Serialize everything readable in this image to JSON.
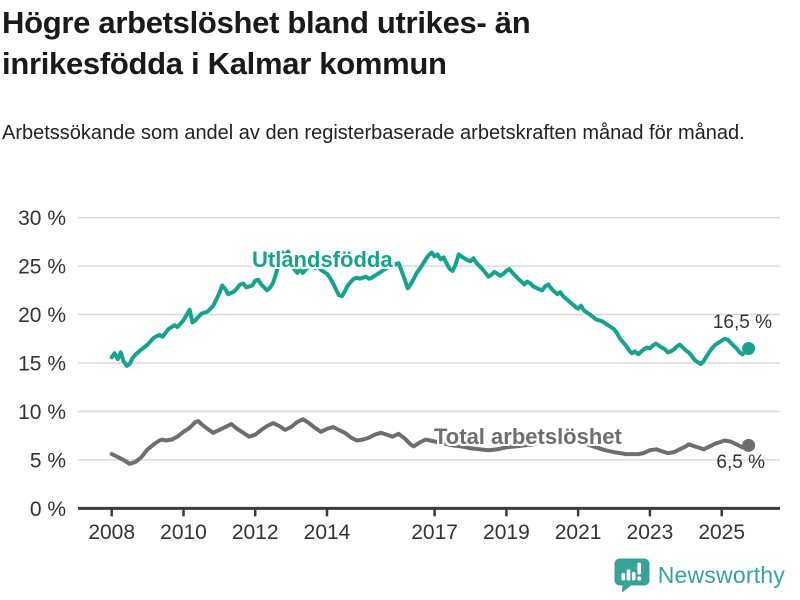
{
  "header": {
    "title": "Högre arbetslöshet bland utrikes- än inrikesfödda i Kalmar kommun",
    "subtitle": "Arbetssökande som andel av den registerbaserade arbetskraften månad för månad."
  },
  "chart_data": {
    "type": "line",
    "title": "Högre arbetslöshet bland utrikes- än inrikesfödda i Kalmar kommun",
    "xlabel": "",
    "ylabel": "",
    "ylim": [
      0,
      30
    ],
    "xlim": [
      2007.05,
      2026.6
    ],
    "grid": true,
    "legend_position": "inline-labels-on-lines",
    "colors": {
      "axis": "#3c3c3c",
      "gridline": "#d9d9d9",
      "tick_text": "#333333"
    },
    "y_ticks": [
      {
        "value": 0,
        "label": "0 %"
      },
      {
        "value": 5,
        "label": "5 %"
      },
      {
        "value": 10,
        "label": "10 %"
      },
      {
        "value": 15,
        "label": "15 %"
      },
      {
        "value": 20,
        "label": "20 %"
      },
      {
        "value": 25,
        "label": "25 %"
      },
      {
        "value": 30,
        "label": "30 %"
      }
    ],
    "x_ticks": [
      {
        "value": 2008,
        "label": "2008"
      },
      {
        "value": 2010,
        "label": "2010"
      },
      {
        "value": 2012,
        "label": "2012"
      },
      {
        "value": 2014,
        "label": "2014"
      },
      {
        "value": 2017,
        "label": "2017"
      },
      {
        "value": 2019,
        "label": "2019"
      },
      {
        "value": 2021,
        "label": "2021"
      },
      {
        "value": 2023,
        "label": "2023"
      },
      {
        "value": 2025,
        "label": "2025"
      }
    ],
    "series": [
      {
        "name": "Utlandsfödda",
        "color": "#17a28f",
        "end_label": "16,5 %",
        "final_value": 16.5,
        "x": [
          2008.0,
          2008.08,
          2008.17,
          2008.25,
          2008.33,
          2008.42,
          2008.5,
          2008.58,
          2008.67,
          2008.83,
          2009.0,
          2009.17,
          2009.33,
          2009.42,
          2009.58,
          2009.75,
          2009.83,
          2010.0,
          2010.08,
          2010.17,
          2010.25,
          2010.33,
          2010.5,
          2010.67,
          2010.83,
          2011.0,
          2011.08,
          2011.17,
          2011.25,
          2011.42,
          2011.58,
          2011.67,
          2011.75,
          2011.92,
          2012.0,
          2012.08,
          2012.17,
          2012.33,
          2012.42,
          2012.5,
          2012.58,
          2012.67,
          2012.75,
          2012.83,
          2012.92,
          2013.0,
          2013.08,
          2013.17,
          2013.25,
          2013.33,
          2013.42,
          2013.5,
          2013.58,
          2013.67,
          2013.75,
          2013.83,
          2013.92,
          2014.0,
          2014.08,
          2014.17,
          2014.25,
          2014.33,
          2014.42,
          2014.5,
          2014.58,
          2014.67,
          2014.75,
          2014.83,
          2014.92,
          2015.0,
          2015.08,
          2015.17,
          2015.25,
          2015.33,
          2015.42,
          2015.5,
          2015.58,
          2015.67,
          2015.75,
          2015.83,
          2015.92,
          2016.0,
          2016.08,
          2016.17,
          2016.25,
          2016.33,
          2016.42,
          2016.5,
          2016.58,
          2016.67,
          2016.75,
          2016.83,
          2016.92,
          2017.0,
          2017.08,
          2017.17,
          2017.25,
          2017.33,
          2017.42,
          2017.5,
          2017.58,
          2017.67,
          2017.75,
          2017.83,
          2017.92,
          2018.0,
          2018.08,
          2018.17,
          2018.25,
          2018.33,
          2018.42,
          2018.5,
          2018.58,
          2018.67,
          2018.75,
          2018.83,
          2018.92,
          2019.0,
          2019.08,
          2019.17,
          2019.25,
          2019.33,
          2019.42,
          2019.5,
          2019.58,
          2019.67,
          2019.75,
          2019.92,
          2020.0,
          2020.08,
          2020.17,
          2020.25,
          2020.33,
          2020.42,
          2020.5,
          2020.58,
          2020.67,
          2020.83,
          2020.92,
          2021.0,
          2021.08,
          2021.17,
          2021.33,
          2021.5,
          2021.67,
          2021.83,
          2022.0,
          2022.08,
          2022.17,
          2022.33,
          2022.42,
          2022.5,
          2022.58,
          2022.67,
          2022.83,
          2022.92,
          2023.0,
          2023.08,
          2023.17,
          2023.25,
          2023.33,
          2023.42,
          2023.5,
          2023.58,
          2023.67,
          2023.75,
          2023.83,
          2023.92,
          2024.0,
          2024.08,
          2024.17,
          2024.25,
          2024.33,
          2024.42,
          2024.5,
          2024.58,
          2024.67,
          2024.75,
          2024.83,
          2024.92,
          2025.0,
          2025.08,
          2025.17,
          2025.25,
          2025.33,
          2025.42,
          2025.5,
          2025.58,
          2025.67,
          2025.75
        ],
        "values": [
          15.6,
          16.0,
          15.4,
          16.1,
          15.2,
          14.7,
          14.9,
          15.5,
          15.9,
          16.4,
          16.9,
          17.6,
          17.9,
          17.7,
          18.5,
          18.9,
          18.7,
          19.4,
          19.9,
          20.5,
          19.2,
          19.4,
          20.1,
          20.3,
          20.9,
          22.2,
          23.0,
          22.6,
          22.1,
          22.4,
          23.1,
          23.2,
          22.8,
          23.0,
          23.5,
          23.6,
          23.1,
          22.5,
          22.8,
          23.3,
          24.2,
          25.5,
          26.4,
          26.1,
          26.5,
          25.6,
          24.7,
          24.3,
          24.6,
          24.3,
          24.7,
          24.9,
          25.2,
          24.8,
          25.0,
          24.6,
          24.4,
          24.2,
          23.8,
          23.2,
          22.6,
          22.0,
          21.9,
          22.4,
          23.0,
          23.4,
          23.7,
          23.8,
          23.7,
          23.8,
          23.9,
          23.7,
          23.8,
          24.0,
          24.2,
          24.4,
          24.6,
          24.8,
          25.0,
          25.1,
          25.2,
          25.3,
          24.5,
          23.6,
          22.7,
          23.1,
          23.7,
          24.3,
          24.7,
          25.2,
          25.7,
          26.1,
          26.4,
          26.0,
          26.2,
          25.7,
          25.9,
          25.3,
          24.7,
          24.5,
          25.1,
          26.2,
          26.0,
          25.8,
          25.6,
          25.5,
          25.8,
          25.3,
          25.0,
          24.7,
          24.3,
          23.9,
          24.1,
          24.4,
          24.2,
          24.0,
          24.2,
          24.5,
          24.7,
          24.3,
          24.0,
          23.7,
          23.4,
          23.1,
          23.4,
          23.2,
          22.9,
          22.6,
          22.5,
          22.9,
          23.1,
          22.7,
          22.4,
          22.1,
          22.3,
          21.9,
          21.6,
          21.1,
          20.8,
          20.6,
          20.9,
          20.4,
          20.0,
          19.5,
          19.3,
          18.9,
          18.5,
          18.1,
          17.5,
          16.8,
          16.3,
          16.0,
          16.2,
          15.9,
          16.4,
          16.6,
          16.5,
          16.8,
          17.0,
          16.8,
          16.6,
          16.4,
          16.1,
          16.2,
          16.4,
          16.7,
          16.9,
          16.6,
          16.3,
          16.1,
          15.7,
          15.3,
          15.1,
          14.9,
          15.2,
          15.7,
          16.2,
          16.6,
          16.9,
          17.1,
          17.3,
          17.5,
          17.4,
          17.1,
          16.8,
          16.5,
          16.1,
          15.9,
          16.2,
          16.5
        ]
      },
      {
        "name": "Total arbetslöshet",
        "color": "#6e6e6e",
        "end_label": "6,5 %",
        "final_value": 6.5,
        "x": [
          2008.0,
          2008.17,
          2008.33,
          2008.5,
          2008.67,
          2008.83,
          2009.0,
          2009.17,
          2009.33,
          2009.42,
          2009.5,
          2009.67,
          2009.83,
          2010.0,
          2010.17,
          2010.33,
          2010.42,
          2010.5,
          2010.67,
          2010.83,
          2011.0,
          2011.17,
          2011.33,
          2011.5,
          2011.67,
          2011.83,
          2012.0,
          2012.17,
          2012.33,
          2012.5,
          2012.67,
          2012.83,
          2013.0,
          2013.17,
          2013.33,
          2013.5,
          2013.67,
          2013.83,
          2014.0,
          2014.17,
          2014.33,
          2014.5,
          2014.67,
          2014.83,
          2015.0,
          2015.17,
          2015.33,
          2015.5,
          2015.67,
          2015.83,
          2016.0,
          2016.17,
          2016.33,
          2016.42,
          2016.58,
          2016.75,
          2017.0,
          2017.25,
          2017.5,
          2017.75,
          2018.0,
          2018.25,
          2018.5,
          2018.75,
          2019.0,
          2019.25,
          2019.5,
          2019.75,
          2020.0,
          2020.25,
          2020.42,
          2020.58,
          2020.83,
          2021.0,
          2021.25,
          2021.5,
          2021.75,
          2022.0,
          2022.17,
          2022.33,
          2022.5,
          2022.67,
          2022.83,
          2023.0,
          2023.17,
          2023.33,
          2023.5,
          2023.67,
          2023.83,
          2024.0,
          2024.08,
          2024.25,
          2024.42,
          2024.5,
          2024.67,
          2024.83,
          2025.0,
          2025.08,
          2025.25,
          2025.42,
          2025.58,
          2025.67,
          2025.75
        ],
        "values": [
          5.6,
          5.3,
          5.0,
          4.6,
          4.8,
          5.3,
          6.1,
          6.6,
          7.0,
          7.1,
          7.0,
          7.1,
          7.4,
          7.9,
          8.3,
          8.9,
          9.0,
          8.7,
          8.2,
          7.8,
          8.1,
          8.4,
          8.7,
          8.2,
          7.8,
          7.4,
          7.6,
          8.1,
          8.5,
          8.8,
          8.5,
          8.1,
          8.4,
          8.9,
          9.2,
          8.8,
          8.3,
          7.9,
          8.2,
          8.4,
          8.1,
          7.8,
          7.3,
          7.0,
          7.1,
          7.3,
          7.6,
          7.8,
          7.6,
          7.4,
          7.7,
          7.2,
          6.6,
          6.4,
          6.8,
          7.1,
          6.9,
          6.7,
          6.5,
          6.4,
          6.2,
          6.1,
          6.0,
          6.1,
          6.3,
          6.4,
          6.5,
          6.6,
          6.9,
          7.4,
          7.6,
          7.4,
          7.1,
          6.9,
          6.6,
          6.3,
          6.0,
          5.8,
          5.7,
          5.6,
          5.6,
          5.6,
          5.7,
          6.0,
          6.1,
          5.9,
          5.7,
          5.8,
          6.1,
          6.4,
          6.6,
          6.4,
          6.2,
          6.1,
          6.4,
          6.7,
          6.9,
          7.0,
          6.9,
          6.6,
          6.3,
          6.2,
          6.5
        ]
      }
    ]
  },
  "footer": {
    "brand": "Newsworthy",
    "brand_color": "#38a29a"
  }
}
